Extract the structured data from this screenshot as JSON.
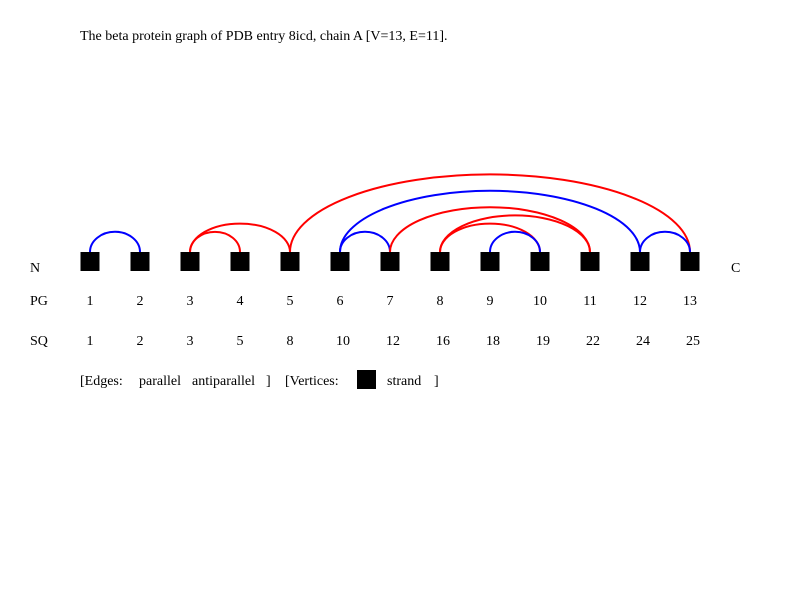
{
  "title": "The beta protein graph of PDB entry 8icd, chain A [V=13, E=11].",
  "terminus": {
    "n": "N",
    "c": "C"
  },
  "row_labels": {
    "pg": "PG",
    "sq": "SQ"
  },
  "colors": {
    "parallel": "#ff0000",
    "antiparallel": "#0000ff",
    "strand": "#000000"
  },
  "vertices": [
    {
      "pg": "1",
      "sq": "1"
    },
    {
      "pg": "2",
      "sq": "2"
    },
    {
      "pg": "3",
      "sq": "3"
    },
    {
      "pg": "4",
      "sq": "5"
    },
    {
      "pg": "5",
      "sq": "8"
    },
    {
      "pg": "6",
      "sq": "10"
    },
    {
      "pg": "7",
      "sq": "12"
    },
    {
      "pg": "8",
      "sq": "16"
    },
    {
      "pg": "9",
      "sq": "18"
    },
    {
      "pg": "10",
      "sq": "19"
    },
    {
      "pg": "11",
      "sq": "22"
    },
    {
      "pg": "12",
      "sq": "24"
    },
    {
      "pg": "13",
      "sq": "25"
    }
  ],
  "edges": [
    {
      "from": 1,
      "to": 2,
      "type": "antiparallel"
    },
    {
      "from": 3,
      "to": 4,
      "type": "parallel"
    },
    {
      "from": 3,
      "to": 5,
      "type": "parallel"
    },
    {
      "from": 5,
      "to": 13,
      "type": "parallel"
    },
    {
      "from": 6,
      "to": 7,
      "type": "antiparallel"
    },
    {
      "from": 6,
      "to": 12,
      "type": "antiparallel"
    },
    {
      "from": 7,
      "to": 11,
      "type": "parallel"
    },
    {
      "from": 8,
      "to": 10,
      "type": "parallel"
    },
    {
      "from": 8,
      "to": 11,
      "type": "parallel"
    },
    {
      "from": 9,
      "to": 10,
      "type": "antiparallel"
    },
    {
      "from": 12,
      "to": 13,
      "type": "antiparallel"
    }
  ],
  "legend": {
    "edges_prefix": "[Edges:",
    "parallel_label": "parallel",
    "antiparallel_label": "antiparallel",
    "edges_suffix": "]",
    "vertices_prefix": "[Vertices:",
    "strand_label": "strand",
    "vertices_suffix": "]"
  }
}
